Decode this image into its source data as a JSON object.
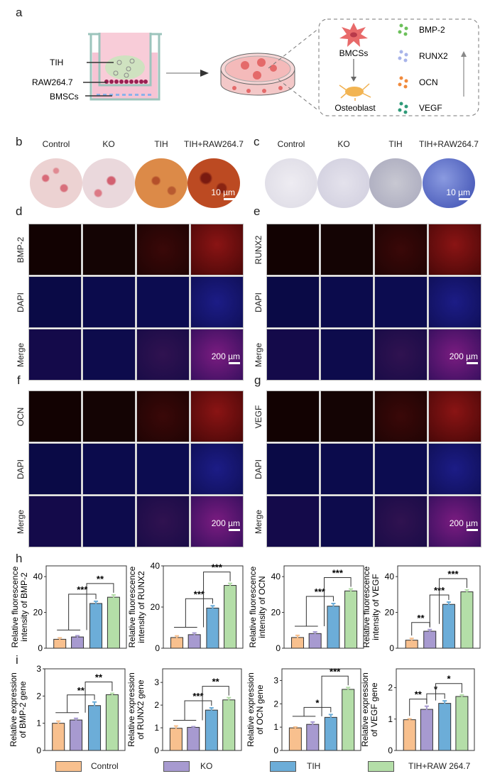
{
  "panel_letters": {
    "a": "a",
    "b": "b",
    "c": "c",
    "d": "d",
    "e": "e",
    "f": "f",
    "g": "g",
    "h": "h",
    "i": "i"
  },
  "schematic": {
    "transwell_labels": [
      "TIH",
      "RAW264.7",
      "BMSCs"
    ],
    "cell_top": "BMCSs",
    "cell_bottom": "Osteoblast",
    "markers": [
      "BMP-2",
      "RUNX2",
      "OCN",
      "VEGF"
    ],
    "marker_colors": [
      "#6cc05a",
      "#a8b4ea",
      "#f08a3c",
      "#2e9a78"
    ]
  },
  "staining": {
    "groups": [
      "Control",
      "KO",
      "TIH",
      "TIH+RAW264.7"
    ],
    "scale_bar": "10 µm"
  },
  "immunofluorescence": {
    "panels": [
      {
        "letter": "d",
        "marker": "BMP-2"
      },
      {
        "letter": "e",
        "marker": "RUNX2"
      },
      {
        "letter": "f",
        "marker": "OCN"
      },
      {
        "letter": "g",
        "marker": "VEGF"
      }
    ],
    "rows": [
      "DAPI",
      "Merge"
    ],
    "scale_bar": "200 µm"
  },
  "legend": [
    {
      "label": "Control",
      "color": "#f8c08e"
    },
    {
      "label": "KO",
      "color": "#a79ad0"
    },
    {
      "label": "TIH",
      "color": "#6cadd8"
    },
    {
      "label": "TIH+RAW 264.7",
      "color": "#b4dea8"
    }
  ],
  "chart_data": [
    {
      "type": "bar",
      "panel": "h",
      "ylabel": [
        "Relative fluorescence",
        "intensity of BMP-2"
      ],
      "categories": [
        "Control",
        "KO",
        "TIH",
        "TIH+RAW 264.7"
      ],
      "values": [
        5,
        6.3,
        25,
        28.5
      ],
      "errors": [
        0.8,
        0.7,
        1.2,
        1.3
      ],
      "ylim": [
        0,
        46
      ],
      "yticks": [
        0,
        20,
        40
      ],
      "significance": [
        {
          "from": 0,
          "to": 1,
          "label": ""
        },
        {
          "from": 0.5,
          "to": 2,
          "label": "***"
        },
        {
          "from": 1.5,
          "to": 3,
          "label": "**"
        }
      ]
    },
    {
      "type": "bar",
      "panel": "h",
      "ylabel": [
        "Relative fluorescence",
        "intensity of RUNX2"
      ],
      "categories": [
        "Control",
        "KO",
        "TIH",
        "TIH+RAW 264.7"
      ],
      "values": [
        5.2,
        6.6,
        19.5,
        30.5
      ],
      "errors": [
        0.8,
        0.8,
        1.1,
        1.0
      ],
      "ylim": [
        0,
        40
      ],
      "yticks": [
        0,
        20,
        40
      ],
      "significance": [
        {
          "from": 0,
          "to": 1,
          "label": ""
        },
        {
          "from": 0.5,
          "to": 2,
          "label": "***"
        },
        {
          "from": 1.5,
          "to": 3,
          "label": "***"
        }
      ]
    },
    {
      "type": "bar",
      "panel": "h",
      "ylabel": [
        "Relative fluorescence",
        "intensity of OCN"
      ],
      "categories": [
        "Control",
        "KO",
        "TIH",
        "TIH+RAW 264.7"
      ],
      "values": [
        6,
        8.2,
        23.5,
        32
      ],
      "errors": [
        1.2,
        0.9,
        1.5,
        1.1
      ],
      "ylim": [
        0,
        46
      ],
      "yticks": [
        0,
        20,
        40
      ],
      "significance": [
        {
          "from": 0,
          "to": 1,
          "label": ""
        },
        {
          "from": 0.5,
          "to": 2,
          "label": "***"
        },
        {
          "from": 1.5,
          "to": 3,
          "label": "***"
        }
      ]
    },
    {
      "type": "bar",
      "panel": "h",
      "ylabel": [
        "Relative fluorescence",
        "intensity of VEGF"
      ],
      "categories": [
        "Control",
        "KO",
        "TIH",
        "TIH+RAW 264.7"
      ],
      "values": [
        4.5,
        9.5,
        24.5,
        31.5
      ],
      "errors": [
        1.0,
        0.9,
        1.3,
        1.0
      ],
      "ylim": [
        0,
        46
      ],
      "yticks": [
        0,
        20,
        40
      ],
      "significance": [
        {
          "from": 0,
          "to": 1,
          "label": "**"
        },
        {
          "from": 1,
          "to": 2,
          "label": "***"
        },
        {
          "from": 1.5,
          "to": 3,
          "label": "***"
        }
      ]
    },
    {
      "type": "bar",
      "panel": "i",
      "ylabel": [
        "Relative expression",
        "of BMP-2 gene"
      ],
      "categories": [
        "Control",
        "KO",
        "TIH",
        "TIH+RAW 264.7"
      ],
      "values": [
        1.0,
        1.12,
        1.65,
        2.05
      ],
      "errors": [
        0.08,
        0.06,
        0.13,
        0.05
      ],
      "ylim": [
        0,
        3
      ],
      "yticks": [
        0,
        1,
        2,
        3
      ],
      "significance": [
        {
          "from": 0,
          "to": 1,
          "label": ""
        },
        {
          "from": 0.5,
          "to": 2,
          "label": "**"
        },
        {
          "from": 1.5,
          "to": 3,
          "label": "**"
        }
      ]
    },
    {
      "type": "bar",
      "panel": "i",
      "ylabel": [
        "Relative expression",
        "of RUNX2 gene"
      ],
      "categories": [
        "Control",
        "KO",
        "TIH",
        "TIH+RAW 264.7"
      ],
      "values": [
        0.98,
        1.02,
        1.78,
        2.23
      ],
      "errors": [
        0.1,
        0.03,
        0.1,
        0.1
      ],
      "ylim": [
        0,
        3.6
      ],
      "yticks": [
        0,
        1,
        2,
        3
      ],
      "significance": [
        {
          "from": 0,
          "to": 1,
          "label": ""
        },
        {
          "from": 0.5,
          "to": 2,
          "label": "***"
        },
        {
          "from": 1.5,
          "to": 3,
          "label": "**"
        }
      ]
    },
    {
      "type": "bar",
      "panel": "i",
      "ylabel": [
        "Relative expression",
        "of OCN gene"
      ],
      "categories": [
        "Control",
        "KO",
        "TIH",
        "TIH+RAW 264.7"
      ],
      "values": [
        0.97,
        1.12,
        1.42,
        2.62
      ],
      "errors": [
        0.04,
        0.1,
        0.12,
        0.08
      ],
      "ylim": [
        0,
        3.5
      ],
      "yticks": [
        0,
        1,
        2,
        3
      ],
      "significance": [
        {
          "from": 0,
          "to": 1,
          "label": ""
        },
        {
          "from": 0.5,
          "to": 2,
          "label": "*"
        },
        {
          "from": 1.5,
          "to": 3,
          "label": "***"
        }
      ]
    },
    {
      "type": "bar",
      "panel": "i",
      "ylabel": [
        "Relative expression",
        "of VEGF gene"
      ],
      "categories": [
        "Control",
        "KO",
        "TIH",
        "TIH+RAW 264.7"
      ],
      "values": [
        0.98,
        1.31,
        1.5,
        1.72
      ],
      "errors": [
        0.03,
        0.1,
        0.08,
        0.05
      ],
      "ylim": [
        0,
        2.6
      ],
      "yticks": [
        0,
        1,
        2
      ],
      "significance": [
        {
          "from": 0,
          "to": 1,
          "label": "**"
        },
        {
          "from": 1,
          "to": 2,
          "label": "*"
        },
        {
          "from": 1.5,
          "to": 3,
          "label": "*"
        }
      ]
    }
  ]
}
